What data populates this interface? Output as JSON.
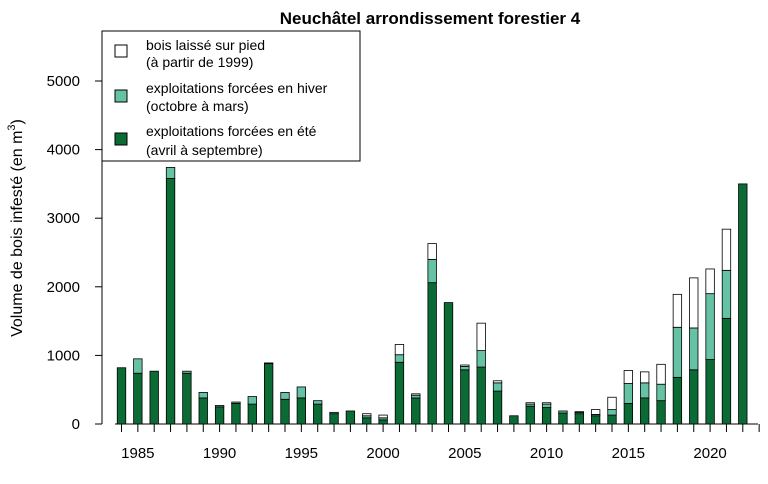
{
  "chart_data": {
    "type": "bar",
    "stacked": true,
    "title": "Neuchâtel arrondissement forestier 4",
    "ylabel": "Volume de bois infesté (en m",
    "ylabel_sup": "3",
    "ylabel_end": ")",
    "ylim": [
      0,
      5500
    ],
    "yticks": [
      0,
      1000,
      2000,
      3000,
      4000,
      5000
    ],
    "xlim": [
      1984,
      2023
    ],
    "xticks": [
      1985,
      1990,
      1995,
      2000,
      2005,
      2010,
      2015,
      2020
    ],
    "grid": false,
    "legend_position": "top-left",
    "colors": {
      "ete": "#0b6b35",
      "hiver": "#66c2a5",
      "pied": "#ffffff",
      "outline": "#000000"
    },
    "legend": [
      {
        "key": "pied",
        "line1": "bois laissé sur pied",
        "line2": "(à partir de 1999)"
      },
      {
        "key": "hiver",
        "line1": "exploitations forcées en hiver",
        "line2": "(octobre à mars)"
      },
      {
        "key": "ete",
        "line1": "exploitations forcées en été",
        "line2": "(avril à septembre)"
      }
    ],
    "categories": [
      1984,
      1985,
      1986,
      1987,
      1988,
      1989,
      1990,
      1991,
      1992,
      1993,
      1994,
      1995,
      1996,
      1997,
      1998,
      1999,
      2000,
      2001,
      2002,
      2003,
      2004,
      2005,
      2006,
      2007,
      2008,
      2009,
      2010,
      2011,
      2012,
      2013,
      2014,
      2015,
      2016,
      2017,
      2018,
      2019,
      2020,
      2021,
      2022
    ],
    "series": [
      {
        "key": "ete",
        "name": "exploitations forcées en été",
        "values": [
          820,
          740,
          770,
          3580,
          740,
          380,
          250,
          300,
          290,
          880,
          360,
          380,
          290,
          150,
          190,
          90,
          60,
          900,
          380,
          2060,
          1770,
          790,
          830,
          480,
          120,
          260,
          240,
          160,
          150,
          120,
          130,
          300,
          380,
          340,
          680,
          790,
          940,
          1540,
          3500
        ]
      },
      {
        "key": "hiver",
        "name": "exploitations forcées en hiver",
        "values": [
          0,
          210,
          0,
          160,
          30,
          80,
          20,
          20,
          110,
          10,
          100,
          160,
          50,
          20,
          0,
          30,
          30,
          110,
          40,
          340,
          0,
          50,
          240,
          120,
          0,
          30,
          50,
          30,
          20,
          20,
          80,
          290,
          220,
          240,
          730,
          610,
          960,
          700,
          0
        ]
      },
      {
        "key": "pied",
        "name": "bois laissé sur pied",
        "values": [
          0,
          0,
          0,
          0,
          0,
          0,
          0,
          0,
          0,
          0,
          0,
          0,
          0,
          0,
          0,
          30,
          40,
          150,
          20,
          230,
          0,
          20,
          400,
          30,
          0,
          20,
          20,
          0,
          10,
          70,
          180,
          190,
          160,
          290,
          480,
          730,
          360,
          600,
          0
        ]
      }
    ]
  }
}
